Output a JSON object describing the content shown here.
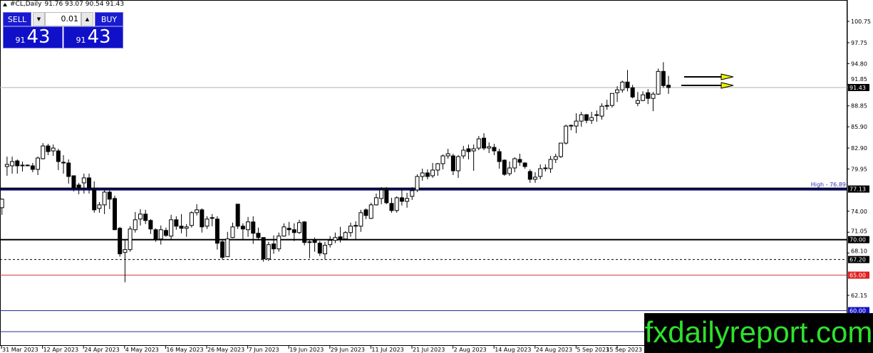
{
  "header": {
    "symbol": "#CL,Daily",
    "ohlc": "91.76 93.07 90.54 91.43"
  },
  "trade_panel": {
    "sell_label": "SELL",
    "buy_label": "BUY",
    "lot": "0.01",
    "sell_small": "91",
    "sell_big": "43",
    "buy_small": "91",
    "buy_big": "43"
  },
  "logo": "fxdailyreport.com",
  "chart_data": {
    "type": "candlestick",
    "symbol": "#CL",
    "timeframe": "Daily",
    "ylim": [
      56.5,
      102.5
    ],
    "price_ticks": [
      "100.75",
      "97.75",
      "94.80",
      "91.85",
      "88.85",
      "85.90",
      "82.90",
      "79.95",
      "74.00",
      "71.05",
      "68.10",
      "62.15"
    ],
    "x_labels": [
      "31 Mar 2023",
      "12 Apr 2023",
      "24 Apr 2023",
      "4 May 2023",
      "16 May 2023",
      "26 May 2023",
      "7 Jun 2023",
      "19 Jun 2023",
      "29 Jun 2023",
      "11 Jul 2023",
      "21 Jul 2023",
      "2 Aug 2023",
      "14 Aug 2023",
      "24 Aug 2023",
      "5 Sep 2023",
      "15 Sep 2023"
    ],
    "current_price": {
      "value": 91.43,
      "label": "91.43",
      "line_color": "#b0b0b0"
    },
    "levels": [
      {
        "price": 77.13,
        "label": "77.13",
        "color": "#000080",
        "label_bg": "#000000",
        "style": "thick"
      },
      {
        "price": 70.0,
        "label": "70.00",
        "color": "#000000",
        "label_bg": "#000000",
        "style": "solid2"
      },
      {
        "price": 67.2,
        "label": "67.20",
        "color": "#000000",
        "label_bg": "#000000",
        "style": "dashed"
      },
      {
        "price": 65.0,
        "label": "65.00",
        "color": "#d03a2a",
        "label_bg": "#e02020",
        "style": "solid"
      },
      {
        "price": 60.0,
        "label": "60.00",
        "color": "#2a2a9a",
        "label_bg": "#1010c8",
        "style": "solid"
      },
      {
        "price": 57.04,
        "label": "",
        "color": "#2a2a9a",
        "label_bg": "",
        "style": "solid"
      }
    ],
    "annotation": {
      "text": "High - 76.89",
      "color": "#3030c0"
    },
    "arrows": {
      "color": "#f0f000",
      "count": 2
    },
    "candles_ohlc": [
      [
        74.5,
        75.8,
        73.5,
        75.7
      ],
      [
        80.3,
        81.7,
        79.0,
        80.6
      ],
      [
        80.4,
        81.7,
        79.3,
        81.0
      ],
      [
        81.1,
        81.3,
        79.3,
        80.4
      ],
      [
        80.5,
        81.0,
        79.6,
        80.45
      ],
      [
        80.5,
        80.6,
        80.4,
        80.5
      ],
      [
        80.4,
        80.8,
        79.5,
        79.9
      ],
      [
        79.9,
        81.7,
        79.1,
        81.5
      ],
      [
        81.4,
        83.6,
        81.3,
        83.2
      ],
      [
        83.2,
        83.5,
        81.9,
        82.4
      ],
      [
        82.5,
        83.4,
        81.8,
        82.9
      ],
      [
        82.5,
        82.8,
        79.8,
        81.0
      ],
      [
        80.9,
        81.9,
        79.3,
        80.9
      ],
      [
        80.8,
        81.3,
        77.9,
        78.9
      ],
      [
        79.0,
        79.0,
        76.8,
        77.2
      ],
      [
        77.7,
        78.0,
        76.4,
        77.2
      ],
      [
        78.0,
        79.3,
        76.5,
        78.7
      ],
      [
        78.7,
        79.3,
        76.5,
        77.2
      ],
      [
        77.0,
        78.2,
        73.8,
        74.2
      ],
      [
        74.4,
        75.3,
        73.8,
        74.9
      ],
      [
        74.9,
        77.0,
        73.6,
        76.7
      ],
      [
        76.7,
        77.0,
        74.3,
        75.7
      ],
      [
        75.8,
        76.2,
        71.4,
        71.4
      ],
      [
        71.6,
        71.8,
        67.6,
        68.0
      ],
      [
        68.2,
        70.0,
        64.0,
        68.6
      ],
      [
        68.6,
        71.9,
        68.3,
        71.5
      ],
      [
        71.4,
        73.9,
        71.0,
        72.8
      ],
      [
        72.9,
        74.3,
        72.0,
        73.6
      ],
      [
        73.6,
        74.2,
        72.2,
        72.7
      ],
      [
        72.7,
        72.9,
        70.8,
        71.5
      ],
      [
        71.4,
        71.6,
        69.7,
        70.0
      ],
      [
        70.1,
        72.0,
        69.3,
        71.4
      ],
      [
        71.3,
        71.7,
        70.4,
        70.6
      ],
      [
        70.5,
        73.5,
        70.0,
        72.8
      ],
      [
        72.8,
        73.3,
        71.4,
        71.9
      ],
      [
        71.9,
        73.6,
        70.9,
        71.6
      ],
      [
        71.6,
        72.2,
        70.4,
        71.8
      ],
      [
        72.0,
        74.0,
        71.7,
        73.8
      ],
      [
        73.8,
        75.0,
        73.4,
        74.2
      ],
      [
        74.2,
        74.4,
        71.0,
        71.8
      ],
      [
        71.9,
        73.3,
        71.5,
        72.9
      ],
      [
        73.0,
        73.6,
        71.9,
        73.1
      ],
      [
        72.9,
        73.3,
        68.6,
        69.5
      ],
      [
        69.7,
        69.9,
        67.2,
        67.5
      ],
      [
        67.6,
        71.1,
        67.6,
        70.1
      ],
      [
        70.3,
        72.4,
        70.2,
        71.8
      ],
      [
        75.0,
        75.0,
        71.5,
        71.9
      ],
      [
        71.9,
        72.3,
        69.9,
        71.5
      ],
      [
        71.4,
        73.2,
        70.4,
        72.5
      ],
      [
        72.5,
        73.3,
        69.4,
        70.9
      ],
      [
        70.9,
        71.7,
        69.9,
        70.3
      ],
      [
        70.3,
        70.3,
        66.9,
        67.3
      ],
      [
        67.3,
        69.7,
        67.0,
        69.3
      ],
      [
        69.4,
        70.6,
        68.0,
        68.7
      ],
      [
        68.7,
        71.0,
        68.3,
        70.5
      ],
      [
        70.5,
        72.3,
        70.4,
        71.8
      ],
      [
        71.6,
        72.5,
        70.6,
        71.4
      ],
      [
        71.4,
        72.3,
        69.8,
        71.0
      ],
      [
        71.0,
        72.8,
        70.8,
        72.4
      ],
      [
        72.5,
        72.6,
        69.2,
        69.6
      ],
      [
        69.7,
        69.9,
        67.4,
        69.6
      ],
      [
        69.9,
        70.3,
        68.3,
        69.6
      ],
      [
        69.5,
        69.8,
        67.7,
        68.1
      ],
      [
        68.0,
        69.7,
        67.2,
        69.2
      ],
      [
        69.3,
        70.5,
        68.9,
        69.9
      ],
      [
        69.9,
        71.0,
        69.5,
        70.3
      ],
      [
        70.4,
        71.8,
        69.6,
        70.1
      ],
      [
        70.1,
        71.2,
        69.9,
        71.0
      ],
      [
        71.0,
        72.4,
        70.4,
        71.9
      ],
      [
        72.0,
        72.6,
        70.1,
        72.0
      ],
      [
        71.9,
        74.2,
        71.1,
        73.8
      ],
      [
        74.2,
        74.4,
        72.9,
        73.4
      ],
      [
        73.0,
        75.2,
        72.9,
        74.9
      ],
      [
        74.9,
        76.5,
        74.8,
        75.9
      ],
      [
        75.8,
        77.4,
        75.0,
        77.0
      ],
      [
        77.0,
        77.4,
        75.0,
        75.2
      ],
      [
        75.1,
        75.9,
        73.8,
        74.1
      ],
      [
        74.1,
        76.1,
        73.8,
        75.9
      ],
      [
        75.9,
        77.1,
        74.8,
        75.4
      ],
      [
        75.4,
        76.6,
        74.5,
        75.8
      ],
      [
        76.1,
        77.4,
        75.6,
        76.9
      ],
      [
        77.0,
        79.2,
        76.7,
        78.9
      ],
      [
        78.9,
        80.0,
        78.3,
        79.4
      ],
      [
        79.4,
        79.9,
        78.5,
        78.9
      ],
      [
        79.0,
        80.8,
        78.7,
        79.8
      ],
      [
        79.8,
        80.8,
        79.0,
        80.7
      ],
      [
        80.7,
        82.0,
        79.9,
        81.8
      ],
      [
        81.8,
        82.8,
        81.4,
        82.1
      ],
      [
        81.8,
        82.1,
        79.1,
        79.7
      ],
      [
        79.7,
        81.9,
        78.7,
        81.7
      ],
      [
        81.8,
        83.2,
        81.4,
        82.6
      ],
      [
        82.8,
        83.4,
        81.3,
        82.4
      ],
      [
        82.5,
        83.4,
        79.7,
        82.8
      ],
      [
        82.9,
        84.6,
        82.6,
        84.2
      ],
      [
        84.3,
        85.0,
        82.6,
        82.9
      ],
      [
        82.9,
        83.7,
        82.2,
        83.1
      ],
      [
        83.0,
        83.5,
        81.9,
        82.5
      ],
      [
        82.4,
        82.8,
        80.0,
        81.0
      ],
      [
        81.2,
        81.3,
        79.0,
        79.2
      ],
      [
        79.3,
        81.0,
        79.0,
        80.1
      ],
      [
        80.1,
        81.6,
        79.5,
        81.4
      ],
      [
        81.3,
        82.1,
        80.4,
        80.9
      ],
      [
        80.8,
        80.9,
        80.0,
        80.3
      ],
      [
        79.6,
        79.9,
        78.0,
        78.5
      ],
      [
        78.5,
        79.5,
        78.0,
        78.8
      ],
      [
        78.9,
        80.6,
        78.5,
        80.0
      ],
      [
        80.0,
        80.6,
        79.6,
        80.1
      ],
      [
        80.0,
        81.8,
        79.4,
        81.3
      ],
      [
        81.3,
        82.1,
        80.8,
        81.7
      ],
      [
        81.7,
        83.6,
        81.5,
        83.6
      ],
      [
        83.6,
        86.2,
        83.4,
        86.0
      ],
      [
        86.1,
        86.2,
        85.4,
        86.0
      ],
      [
        86.0,
        87.8,
        85.0,
        86.7
      ],
      [
        86.7,
        88.0,
        85.9,
        87.6
      ],
      [
        87.6,
        87.7,
        86.4,
        86.8
      ],
      [
        86.8,
        88.0,
        86.3,
        87.2
      ],
      [
        87.5,
        88.2,
        86.6,
        87.6
      ],
      [
        87.4,
        89.2,
        86.9,
        88.8
      ],
      [
        88.8,
        89.7,
        88.3,
        88.9
      ],
      [
        88.9,
        90.6,
        88.6,
        90.6
      ],
      [
        90.7,
        91.6,
        89.4,
        91.1
      ],
      [
        91.1,
        92.4,
        90.7,
        92.2
      ],
      [
        92.2,
        93.9,
        90.9,
        91.4
      ],
      [
        91.4,
        91.8,
        89.9,
        90.1
      ],
      [
        89.2,
        90.8,
        88.8,
        89.6
      ],
      [
        89.6,
        90.9,
        89.5,
        90.4
      ],
      [
        90.7,
        91.2,
        89.1,
        89.9
      ],
      [
        89.9,
        90.8,
        88.1,
        90.5
      ],
      [
        90.5,
        94.1,
        90.4,
        93.7
      ],
      [
        93.7,
        95.0,
        91.4,
        91.7
      ],
      [
        91.76,
        93.07,
        90.54,
        91.43
      ]
    ]
  }
}
